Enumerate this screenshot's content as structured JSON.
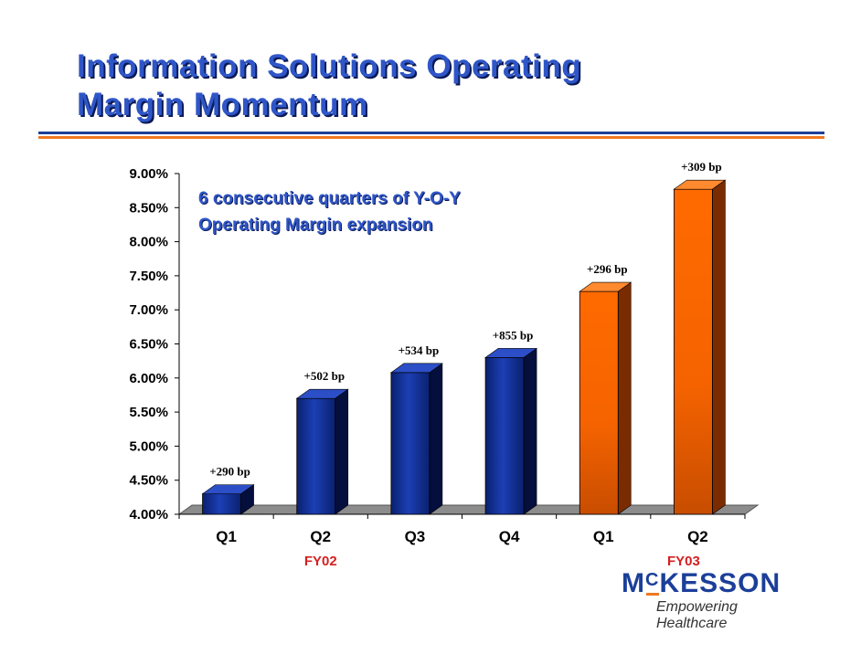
{
  "slide": {
    "title_line1": "Information Solutions Operating",
    "title_line2": "Margin Momentum",
    "annotation_line1": "6 consecutive quarters of Y-O-Y",
    "annotation_line2": "Operating Margin expansion"
  },
  "logo": {
    "brand_prefix": "M",
    "brand_c": "C",
    "brand_rest": "KESSON",
    "tagline": "Empowering Healthcare"
  },
  "colors": {
    "title": "#2f56c8",
    "rule_blue": "#1b3f99",
    "rule_orange": "#f07820",
    "bar_fy02": "#0d2a8a",
    "bar_fy03": "#ff6a00",
    "fiscal_label": "#d42020"
  },
  "chart_data": {
    "type": "bar",
    "title": "",
    "xlabel": "",
    "ylabel": "",
    "categories": [
      "Q1",
      "Q2",
      "Q3",
      "Q4",
      "Q1",
      "Q2"
    ],
    "values": [
      4.3,
      5.7,
      6.08,
      6.3,
      7.27,
      8.77
    ],
    "data_labels": [
      "+290 bp",
      "+502 bp",
      "+534 bp",
      "+855 bp",
      "+296 bp",
      "+309 bp"
    ],
    "group_labels": [
      {
        "label": "FY02",
        "categories": [
          0,
          1,
          2,
          3
        ]
      },
      {
        "label": "FY03",
        "categories": [
          4,
          5
        ]
      }
    ],
    "ylim": [
      4.0,
      9.0
    ],
    "yticks": [
      "4.00%",
      "4.50%",
      "5.00%",
      "5.50%",
      "6.00%",
      "6.50%",
      "7.00%",
      "7.50%",
      "8.00%",
      "8.50%",
      "9.00%"
    ],
    "yticks_values": [
      4.0,
      4.5,
      5.0,
      5.5,
      6.0,
      6.5,
      7.0,
      7.5,
      8.0,
      8.5,
      9.0
    ],
    "grid": false,
    "legend": "none"
  }
}
